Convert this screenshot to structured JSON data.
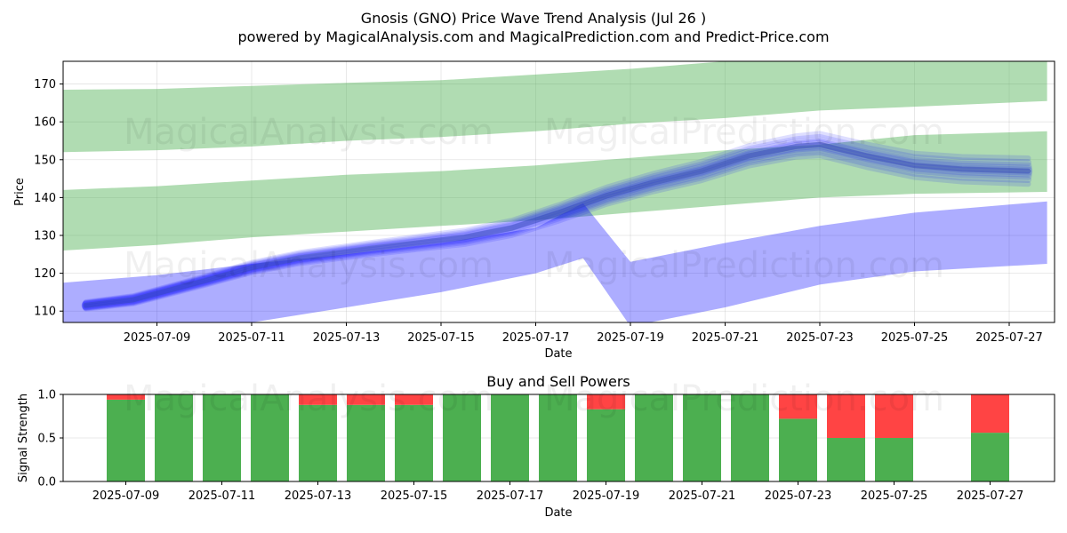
{
  "title_line1": "Gnosis (GNO) Price Wave Trend Analysis (Jul 26 )",
  "title_line2": "powered by MagicalAnalysis.com and MagicalPrediction.com and Predict-Price.com",
  "watermarks": [
    "MagicalAnalysis.com",
    "MagicalPrediction.com"
  ],
  "colors": {
    "upper_band": "#4CAF50",
    "forecast": "#0000FF",
    "buy": "#4CAF50",
    "sell": "#FF4444"
  },
  "chart_data": [
    {
      "type": "area",
      "name": "price-wave-trend",
      "xlabel": "Date",
      "ylabel": "Price",
      "ylim": [
        107,
        176
      ],
      "x_ticks": [
        "2025-07-09",
        "2025-07-11",
        "2025-07-13",
        "2025-07-15",
        "2025-07-17",
        "2025-07-19",
        "2025-07-21",
        "2025-07-23",
        "2025-07-25",
        "2025-07-27"
      ],
      "y_ticks": [
        110,
        120,
        130,
        140,
        150,
        160,
        170
      ],
      "grid": true,
      "bands": [
        {
          "name": "green-upper-band",
          "x": [
            "2025-07-07",
            "2025-07-09",
            "2025-07-11",
            "2025-07-13",
            "2025-07-15",
            "2025-07-17",
            "2025-07-19",
            "2025-07-21",
            "2025-07-23",
            "2025-07-25",
            "2025-07-27.8"
          ],
          "low": [
            152,
            152.5,
            153.5,
            155,
            156,
            157.5,
            159.5,
            161,
            163,
            164,
            165.5
          ],
          "high": [
            168.5,
            168.7,
            169.5,
            170.3,
            171,
            172.5,
            174,
            176,
            178,
            178.5,
            176
          ]
        },
        {
          "name": "green-lower-band",
          "x": [
            "2025-07-07",
            "2025-07-09",
            "2025-07-11",
            "2025-07-13",
            "2025-07-15",
            "2025-07-17",
            "2025-07-19",
            "2025-07-21",
            "2025-07-23",
            "2025-07-25",
            "2025-07-27.8"
          ],
          "low": [
            126,
            127.5,
            129.5,
            131,
            132.5,
            134,
            136,
            138,
            140,
            141,
            141.5
          ],
          "high": [
            142,
            143,
            144.5,
            146,
            147,
            148.5,
            150.5,
            152.5,
            154,
            156.5,
            157.5
          ]
        },
        {
          "name": "blue-projection-band",
          "x": [
            "2025-07-07",
            "2025-07-09",
            "2025-07-11",
            "2025-07-13",
            "2025-07-15",
            "2025-07-17",
            "2025-07-18",
            "2025-07-19",
            "2025-07-21",
            "2025-07-23",
            "2025-07-25",
            "2025-07-27.8"
          ],
          "low": [
            105,
            103,
            107,
            111,
            115,
            120,
            124,
            106,
            111,
            117,
            120.5,
            122.5
          ],
          "high": [
            117.5,
            119.5,
            122.5,
            125,
            128,
            132,
            138.5,
            123,
            128,
            132.5,
            136,
            139
          ]
        }
      ],
      "series": [
        {
          "name": "wave-trend",
          "x": [
            "2025-07-07.5",
            "2025-07-08.5",
            "2025-07-10",
            "2025-07-11",
            "2025-07-12",
            "2025-07-13.5",
            "2025-07-14.5",
            "2025-07-15.5",
            "2025-07-16.5",
            "2025-07-17.5",
            "2025-07-18.5",
            "2025-07-19.5",
            "2025-07-20.5",
            "2025-07-21.5",
            "2025-07-22.5",
            "2025-07-23",
            "2025-07-24",
            "2025-07-25",
            "2025-07-26",
            "2025-07-27.4"
          ],
          "values": [
            111.5,
            113,
            118,
            121.5,
            124,
            126.5,
            128,
            129.5,
            132,
            136,
            140.5,
            144,
            147,
            151,
            153.5,
            154,
            151,
            148.5,
            147.5,
            147
          ]
        }
      ]
    },
    {
      "type": "bar",
      "name": "buy-and-sell-powers",
      "title": "Buy and Sell Powers",
      "xlabel": "Date",
      "ylabel": "Signal Strength",
      "ylim": [
        0,
        1
      ],
      "y_ticks": [
        "0.0",
        "0.5",
        "1.0"
      ],
      "x_ticks": [
        "2025-07-09",
        "2025-07-11",
        "2025-07-13",
        "2025-07-15",
        "2025-07-17",
        "2025-07-19",
        "2025-07-21",
        "2025-07-23",
        "2025-07-25",
        "2025-07-27"
      ],
      "categories": [
        "2025-07-09",
        "2025-07-10",
        "2025-07-11",
        "2025-07-12",
        "2025-07-13",
        "2025-07-14",
        "2025-07-15",
        "2025-07-16",
        "2025-07-17",
        "2025-07-18",
        "2025-07-19",
        "2025-07-20",
        "2025-07-21",
        "2025-07-22",
        "2025-07-23",
        "2025-07-24",
        "2025-07-25",
        "2025-07-27"
      ],
      "series": [
        {
          "name": "buy",
          "values": [
            0.94,
            1,
            1,
            1,
            0.88,
            0.88,
            0.88,
            1,
            1,
            1,
            0.83,
            1,
            1,
            1,
            0.72,
            0.5,
            0.5,
            0.56
          ]
        },
        {
          "name": "sell",
          "values": [
            0.06,
            0,
            0,
            0,
            0.12,
            0.12,
            0.12,
            0,
            0,
            0,
            0.17,
            0,
            0,
            0,
            0.28,
            0.5,
            0.5,
            0.44
          ]
        }
      ]
    }
  ]
}
